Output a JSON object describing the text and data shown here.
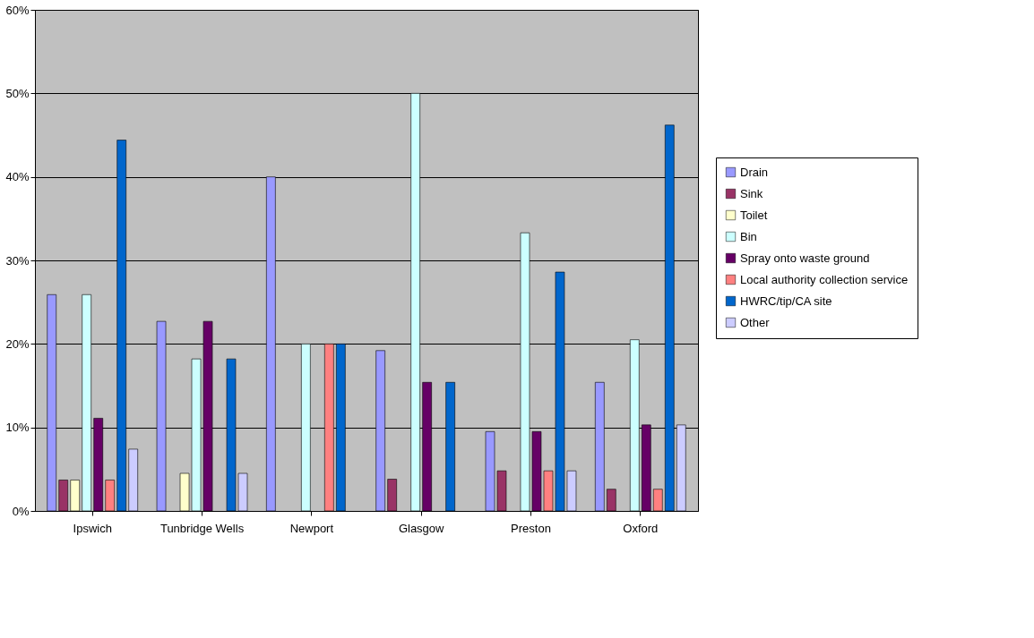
{
  "chart_data": {
    "type": "bar",
    "categories": [
      "Ipswich",
      "Tunbridge Wells",
      "Newport",
      "Glasgow",
      "Preston",
      "Oxford"
    ],
    "series": [
      {
        "name": "Drain",
        "color": "#9999ff",
        "values": [
          25.9,
          22.7,
          40,
          19.2,
          9.5,
          15.4
        ]
      },
      {
        "name": "Sink",
        "color": "#993366",
        "values": [
          3.7,
          null,
          null,
          3.8,
          4.8,
          2.6
        ]
      },
      {
        "name": "Toilet",
        "color": "#ffffcc",
        "values": [
          3.7,
          4.5,
          null,
          null,
          null,
          null
        ]
      },
      {
        "name": "Bin",
        "color": "#ccffff",
        "values": [
          25.9,
          18.2,
          20,
          50,
          33.3,
          20.5
        ]
      },
      {
        "name": "Spray onto waste ground",
        "color": "#660066",
        "values": [
          11.1,
          22.7,
          null,
          15.4,
          9.5,
          10.3
        ]
      },
      {
        "name": "Local authority collection service",
        "color": "#ff8080",
        "values": [
          3.7,
          null,
          20,
          null,
          4.8,
          2.6
        ]
      },
      {
        "name": "HWRC/tip/CA site",
        "color": "#0066cc",
        "values": [
          44.4,
          18.2,
          20,
          15.4,
          28.6,
          46.2
        ]
      },
      {
        "name": "Other",
        "color": "#ccccff",
        "values": [
          7.4,
          4.5,
          null,
          null,
          4.8,
          10.3
        ]
      }
    ],
    "ylim": [
      0,
      60
    ],
    "yticks": [
      {
        "value": 0,
        "label": "0%"
      },
      {
        "value": 10,
        "label": "10%"
      },
      {
        "value": 20,
        "label": "20%"
      },
      {
        "value": 30,
        "label": "30%"
      },
      {
        "value": 40,
        "label": "40%"
      },
      {
        "value": 50,
        "label": "50%"
      },
      {
        "value": 60,
        "label": "60%"
      }
    ],
    "grid": "y",
    "legend": "right"
  }
}
